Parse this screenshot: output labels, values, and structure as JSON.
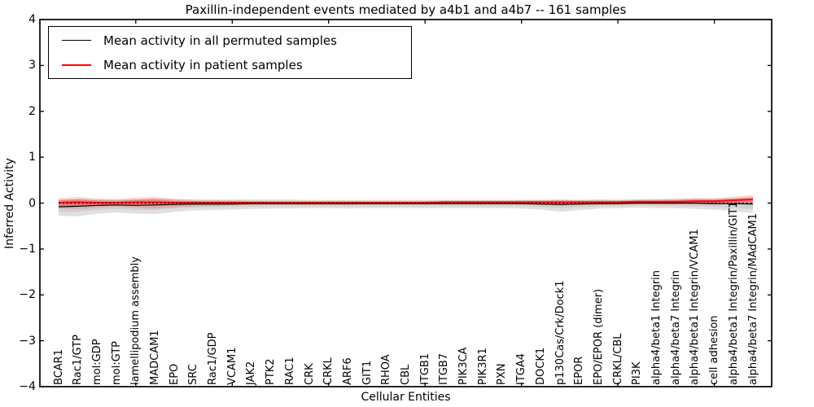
{
  "figure": {
    "title": "Paxillin-independent events mediated by a4b1 and a4b7 -- 161 samples",
    "xlabel": "Cellular Entities",
    "ylabel": "Inferred Activity"
  },
  "legend": {
    "items": [
      {
        "label": "Mean activity in all permuted samples",
        "color": "#000000"
      },
      {
        "label": "Mean activity in patient samples",
        "color": "#ff0000"
      }
    ],
    "position": "upper left"
  },
  "chart_data": {
    "type": "line",
    "title": "Paxillin-independent events mediated by a4b1 and a4b7 -- 161 samples",
    "xlabel": "Cellular Entities",
    "ylabel": "Inferred Activity",
    "ylim": [
      -4,
      4
    ],
    "yticks": [
      -4,
      -3,
      -2,
      -1,
      0,
      1,
      2,
      3,
      4
    ],
    "xtick_marks_at": [
      4,
      9,
      14,
      19,
      24,
      29,
      34
    ],
    "grid": false,
    "zero_line": true,
    "legend_position": "upper left",
    "categories": [
      "BCAR1",
      "Rac1/GTP",
      "mol:GDP",
      "mol:GTP",
      "lamellipodium assembly",
      "MADCAM1",
      "EPO",
      "SRC",
      "Rac1/GDP",
      "VCAM1",
      "JAK2",
      "PTK2",
      "RAC1",
      "CRK",
      "CRKL",
      "ARF6",
      "GIT1",
      "RHOA",
      "CBL",
      "ITGB1",
      "ITGB7",
      "PIK3CA",
      "PIK3R1",
      "PXN",
      "ITGA4",
      "DOCK1",
      "p130Cas/Crk/Dock1",
      "EPOR",
      "EPO/EPOR (dimer)",
      "CRKL/CBL",
      "PI3K",
      "alpha4/beta1 Integrin",
      "alpha4/beta7 Integrin",
      "alpha4/beta1 Integrin/VCAM1",
      "cell adhesion",
      "alpha4/beta1 Integrin/Paxillin/GIT1",
      "alpha4/beta7 Integrin/MAdCAM1"
    ],
    "series": [
      {
        "name": "Mean activity in all permuted samples",
        "color": "#000000",
        "values": [
          -0.08,
          -0.07,
          -0.05,
          -0.04,
          -0.05,
          -0.04,
          -0.03,
          -0.02,
          -0.02,
          -0.02,
          -0.01,
          -0.01,
          -0.01,
          -0.01,
          -0.01,
          -0.01,
          -0.01,
          -0.01,
          -0.01,
          -0.01,
          -0.01,
          -0.01,
          -0.01,
          -0.01,
          -0.01,
          -0.02,
          -0.03,
          -0.02,
          -0.01,
          -0.01,
          0,
          0,
          0,
          0,
          -0.01,
          -0.01,
          -0.02
        ]
      },
      {
        "name": "Mean activity in patient samples",
        "color": "#ff0000",
        "values": [
          0.01,
          0.02,
          0.01,
          0.01,
          0.02,
          0.02,
          0.01,
          0.01,
          0.01,
          0.01,
          0.01,
          0.01,
          0.01,
          0.01,
          0.01,
          0.01,
          0.01,
          0.01,
          0.01,
          0.01,
          0.02,
          0.02,
          0.02,
          0.02,
          0.02,
          0.02,
          0.02,
          0.02,
          0.02,
          0.02,
          0.03,
          0.03,
          0.03,
          0.04,
          0.04,
          0.06,
          0.08
        ]
      }
    ],
    "bands": [
      {
        "name": "permuted-samples-spread",
        "series": "Mean activity in all permuted samples",
        "color_outer": "rgba(0,0,0,0.12)",
        "color_inner": "rgba(0,0,0,0.07)",
        "upper": [
          0.15,
          0.16,
          0.13,
          0.12,
          0.13,
          0.14,
          0.12,
          0.1,
          0.1,
          0.1,
          0.09,
          0.09,
          0.09,
          0.08,
          0.08,
          0.08,
          0.08,
          0.08,
          0.08,
          0.08,
          0.08,
          0.08,
          0.08,
          0.08,
          0.08,
          0.09,
          0.1,
          0.09,
          0.09,
          0.08,
          0.08,
          0.09,
          0.09,
          0.1,
          0.1,
          0.11,
          0.12
        ],
        "lower": [
          0.2,
          0.22,
          0.18,
          0.16,
          0.18,
          0.2,
          0.16,
          0.14,
          0.13,
          0.12,
          0.12,
          0.11,
          0.11,
          0.1,
          0.1,
          0.11,
          0.1,
          0.1,
          0.1,
          0.1,
          0.1,
          0.1,
          0.1,
          0.1,
          0.11,
          0.12,
          0.16,
          0.13,
          0.11,
          0.1,
          0.1,
          0.11,
          0.11,
          0.13,
          0.13,
          0.16,
          0.2
        ]
      },
      {
        "name": "patient-samples-spread",
        "series": "Mean activity in patient samples",
        "color_outer": "rgba(255,0,0,0.16)",
        "color_inner": "rgba(255,0,0,0.28)",
        "upper": [
          0.1,
          0.12,
          0.09,
          0.07,
          0.1,
          0.12,
          0.08,
          0.06,
          0.05,
          0.05,
          0.04,
          0.04,
          0.04,
          0.04,
          0.04,
          0.04,
          0.04,
          0.04,
          0.04,
          0.04,
          0.04,
          0.04,
          0.04,
          0.04,
          0.05,
          0.05,
          0.06,
          0.05,
          0.05,
          0.05,
          0.05,
          0.05,
          0.06,
          0.07,
          0.07,
          0.08,
          0.1
        ],
        "lower": [
          0.13,
          0.15,
          0.11,
          0.09,
          0.12,
          0.14,
          0.1,
          0.08,
          0.07,
          0.06,
          0.05,
          0.05,
          0.05,
          0.05,
          0.05,
          0.05,
          0.04,
          0.04,
          0.04,
          0.04,
          0.04,
          0.04,
          0.04,
          0.04,
          0.05,
          0.06,
          0.08,
          0.06,
          0.06,
          0.05,
          0.05,
          0.06,
          0.06,
          0.07,
          0.07,
          0.08,
          0.1
        ]
      }
    ]
  }
}
